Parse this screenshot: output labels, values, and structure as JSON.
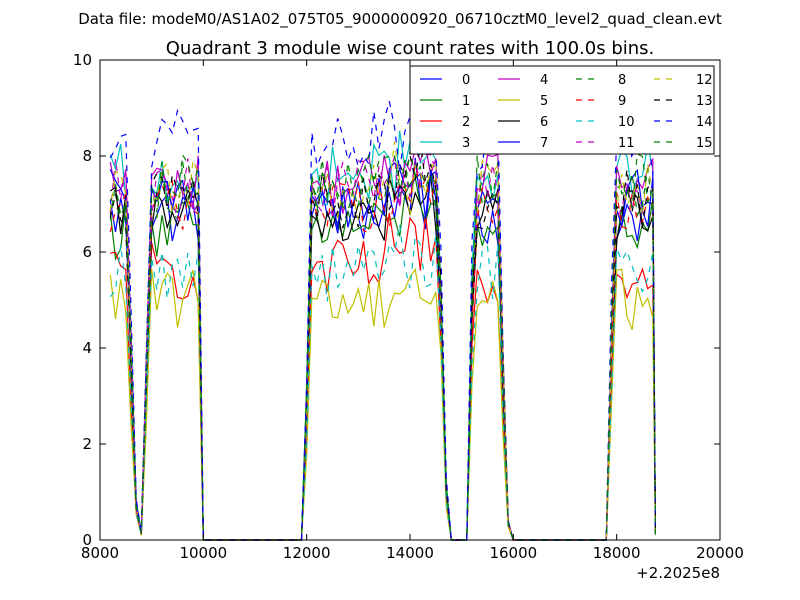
{
  "suptitle": "Data file: modeM0/AS1A02_075T05_9000000920_06710cztM0_level2_quad_clean.evt",
  "chart_data": {
    "type": "line",
    "title": "Quadrant 3 module wise count rates with 100.0s bins.",
    "xlabel": "",
    "ylabel": "",
    "xlim": [
      8000,
      20000
    ],
    "ylim": [
      0,
      10
    ],
    "x_offset_label": "+2.2025e8",
    "x_ticks": [
      8000,
      10000,
      12000,
      14000,
      16000,
      18000,
      20000
    ],
    "y_ticks": [
      0,
      2,
      4,
      6,
      8,
      10
    ],
    "grid": false,
    "legend_location": "upper right",
    "legend_columns": 4,
    "x": [
      8200,
      8300,
      8400,
      8500,
      8600,
      8700,
      8800,
      8900,
      9000,
      9100,
      9200,
      9300,
      9400,
      9500,
      9600,
      9700,
      9800,
      9900,
      10000,
      10100,
      11900,
      12000,
      12100,
      12200,
      12300,
      12400,
      12500,
      12600,
      12700,
      12800,
      12900,
      13000,
      13100,
      13200,
      13300,
      13400,
      13500,
      13600,
      13700,
      13800,
      13900,
      14000,
      14100,
      14200,
      14300,
      14400,
      14500,
      14600,
      14700,
      14800,
      15100,
      15200,
      15300,
      15400,
      15500,
      15600,
      15700,
      15800,
      15900,
      16000,
      17800,
      17900,
      18000,
      18100,
      18200,
      18300,
      18400,
      18500,
      18600,
      18700,
      18750
    ],
    "series": [
      {
        "name": "0",
        "color": "#0000ff",
        "dash": "solid",
        "level": 6.8
      },
      {
        "name": "1",
        "color": "#008000",
        "dash": "solid",
        "level": 6.5
      },
      {
        "name": "2",
        "color": "#ff0000",
        "dash": "solid",
        "level": 5.6
      },
      {
        "name": "3",
        "color": "#00bfbf",
        "dash": "solid",
        "level": 7.6
      },
      {
        "name": "4",
        "color": "#bf00bf",
        "dash": "solid",
        "level": 7.4
      },
      {
        "name": "5",
        "color": "#bfbf00",
        "dash": "solid",
        "level": 5.0
      },
      {
        "name": "6",
        "color": "#000000",
        "dash": "solid",
        "level": 6.7
      },
      {
        "name": "7",
        "color": "#0000ff",
        "dash": "solid",
        "level": 7.1
      },
      {
        "name": "8",
        "color": "#008000",
        "dash": "dashed",
        "level": 7.3
      },
      {
        "name": "9",
        "color": "#ff0000",
        "dash": "dashed",
        "level": 7.0
      },
      {
        "name": "10",
        "color": "#00bfbf",
        "dash": "dashed",
        "level": 5.6
      },
      {
        "name": "11",
        "color": "#bf00bf",
        "dash": "dashed",
        "level": 7.3
      },
      {
        "name": "12",
        "color": "#bfbf00",
        "dash": "dashed",
        "level": 7.3
      },
      {
        "name": "13",
        "color": "#000000",
        "dash": "dashed",
        "level": 7.1
      },
      {
        "name": "14",
        "color": "#0000ff",
        "dash": "dashed",
        "level": 8.3
      },
      {
        "name": "15",
        "color": "#008000",
        "dash": "dashed",
        "level": 7.4
      }
    ]
  }
}
